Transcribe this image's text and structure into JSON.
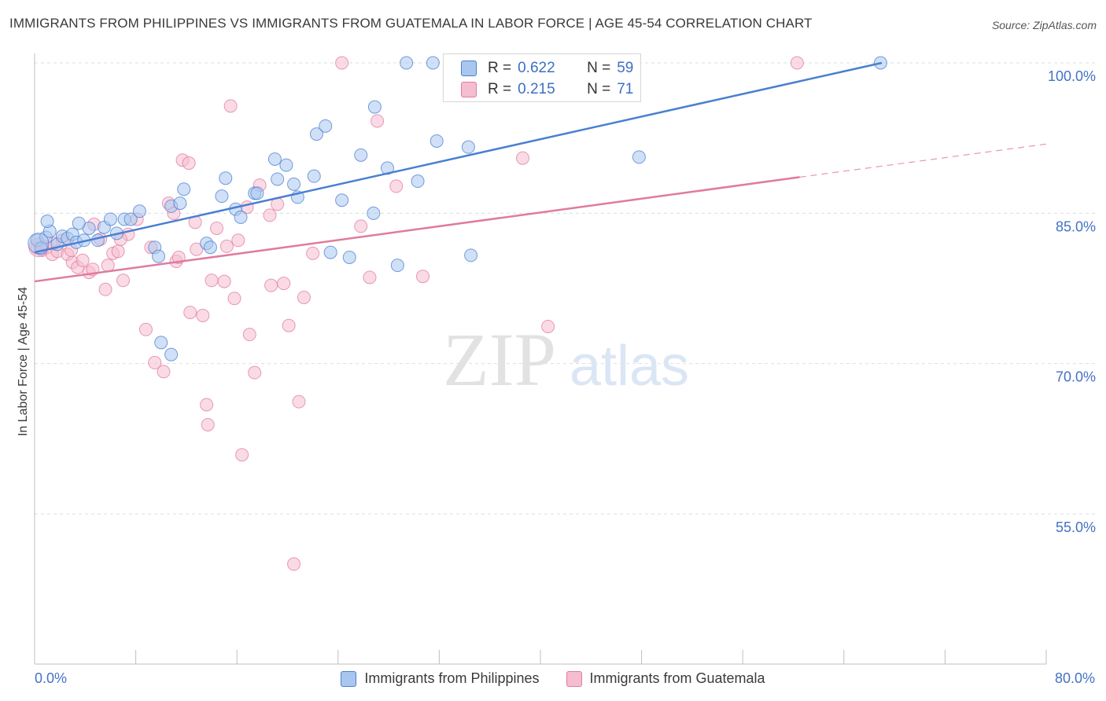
{
  "header": {
    "title": "IMMIGRANTS FROM PHILIPPINES VS IMMIGRANTS FROM GUATEMALA IN LABOR FORCE | AGE 45-54 CORRELATION CHART",
    "source": "Source: ZipAtlas.com"
  },
  "watermark": {
    "zip": "ZIP",
    "atlas": "atlas"
  },
  "stats_box": {
    "row1": {
      "r_label": "R =",
      "r_value": "0.622",
      "n_label": "N =",
      "n_value": "59"
    },
    "row2": {
      "r_label": "R =",
      "r_value": "0.215",
      "n_label": "N =",
      "n_value": "71"
    }
  },
  "colors": {
    "blue": "#4a7fd1",
    "blue_fill": "#a9c6ee",
    "pink": "#e07aa0",
    "pink_fill": "#f5bdd0",
    "axis_text": "#4472c4"
  },
  "chart_data": {
    "type": "scatter",
    "title": "IMMIGRANTS FROM PHILIPPINES VS IMMIGRANTS FROM GUATEMALA IN LABOR FORCE | AGE 45-54 CORRELATION CHART",
    "xlabel": "",
    "ylabel": "In Labor Force | Age 45-54",
    "xlim": [
      0,
      80
    ],
    "ylim": [
      40,
      102
    ],
    "x_tick_labels": [
      "0.0%",
      "80.0%"
    ],
    "y_ticks": [
      55,
      70,
      85,
      100
    ],
    "y_tick_labels": [
      "55.0%",
      "70.0%",
      "85.0%",
      "100.0%"
    ],
    "grid": true,
    "legend_position": "bottom-center",
    "series": [
      {
        "name": "Immigrants from Philippines",
        "color": "#4a7fd1",
        "r": 0.622,
        "n": 59,
        "trend": {
          "x": [
            0,
            67
          ],
          "y": [
            81.1,
            100.0
          ]
        },
        "points": [
          [
            0.2,
            82.3
          ],
          [
            0.5,
            81.5
          ],
          [
            0.9,
            82.6
          ],
          [
            1.2,
            83.2
          ],
          [
            1.8,
            81.9
          ],
          [
            2.2,
            82.7
          ],
          [
            2.6,
            82.5
          ],
          [
            3.0,
            82.9
          ],
          [
            3.3,
            82.1
          ],
          [
            3.9,
            82.3
          ],
          [
            4.3,
            83.5
          ],
          [
            5.0,
            82.3
          ],
          [
            5.5,
            83.6
          ],
          [
            6.0,
            84.4
          ],
          [
            6.5,
            83.0
          ],
          [
            7.1,
            84.4
          ],
          [
            7.6,
            84.4
          ],
          [
            8.3,
            85.2
          ],
          [
            9.5,
            81.6
          ],
          [
            9.8,
            80.7
          ],
          [
            10.8,
            85.7
          ],
          [
            11.5,
            86.0
          ],
          [
            11.8,
            87.4
          ],
          [
            13.6,
            82.0
          ],
          [
            13.9,
            81.6
          ],
          [
            14.8,
            86.7
          ],
          [
            15.1,
            88.5
          ],
          [
            15.9,
            85.4
          ],
          [
            16.3,
            84.6
          ],
          [
            17.4,
            87.0
          ],
          [
            17.6,
            87.0
          ],
          [
            19.0,
            90.4
          ],
          [
            19.2,
            88.4
          ],
          [
            19.9,
            89.8
          ],
          [
            20.5,
            87.9
          ],
          [
            20.8,
            86.6
          ],
          [
            22.1,
            88.7
          ],
          [
            22.3,
            92.9
          ],
          [
            23.0,
            93.7
          ],
          [
            23.4,
            81.1
          ],
          [
            24.3,
            86.3
          ],
          [
            24.9,
            80.6
          ],
          [
            25.8,
            90.8
          ],
          [
            26.8,
            85.0
          ],
          [
            26.9,
            95.6
          ],
          [
            27.9,
            89.5
          ],
          [
            28.7,
            79.8
          ],
          [
            29.4,
            100.0
          ],
          [
            30.3,
            88.2
          ],
          [
            31.5,
            100.0
          ],
          [
            31.8,
            92.2
          ],
          [
            34.3,
            91.6
          ],
          [
            34.5,
            80.8
          ],
          [
            47.8,
            90.6
          ],
          [
            66.9,
            100.0
          ],
          [
            10.0,
            72.1
          ],
          [
            10.8,
            70.9
          ],
          [
            1.0,
            84.2
          ],
          [
            3.5,
            84.0
          ]
        ]
      },
      {
        "name": "Immigrants from Guatemala",
        "color": "#e07aa0",
        "r": 0.215,
        "n": 71,
        "trend": {
          "x": [
            0,
            60.5
          ],
          "y": [
            78.2,
            88.6
          ]
        },
        "trend_dashed": {
          "x": [
            60.5,
            80
          ],
          "y": [
            88.6,
            91.9
          ]
        },
        "points": [
          [
            0.2,
            81.5
          ],
          [
            0.6,
            81.3
          ],
          [
            1.0,
            81.6
          ],
          [
            1.4,
            80.9
          ],
          [
            1.8,
            81.2
          ],
          [
            2.2,
            82.3
          ],
          [
            2.6,
            80.9
          ],
          [
            3.0,
            80.1
          ],
          [
            3.4,
            79.6
          ],
          [
            3.8,
            80.3
          ],
          [
            4.3,
            79.1
          ],
          [
            4.6,
            79.4
          ],
          [
            5.2,
            82.4
          ],
          [
            5.6,
            77.4
          ],
          [
            5.8,
            79.8
          ],
          [
            6.2,
            81.0
          ],
          [
            6.6,
            81.2
          ],
          [
            7.0,
            78.3
          ],
          [
            7.4,
            82.9
          ],
          [
            8.1,
            84.4
          ],
          [
            8.8,
            73.4
          ],
          [
            9.5,
            70.1
          ],
          [
            10.2,
            69.2
          ],
          [
            10.6,
            86.0
          ],
          [
            11.0,
            85.0
          ],
          [
            11.2,
            80.2
          ],
          [
            11.4,
            80.6
          ],
          [
            11.7,
            90.3
          ],
          [
            12.2,
            90.0
          ],
          [
            12.3,
            75.1
          ],
          [
            12.8,
            81.4
          ],
          [
            13.3,
            74.8
          ],
          [
            13.6,
            65.9
          ],
          [
            13.7,
            63.9
          ],
          [
            14.0,
            78.3
          ],
          [
            14.4,
            83.5
          ],
          [
            15.2,
            81.7
          ],
          [
            15.5,
            95.7
          ],
          [
            15.8,
            76.5
          ],
          [
            16.1,
            82.3
          ],
          [
            16.4,
            60.9
          ],
          [
            16.8,
            85.6
          ],
          [
            17.0,
            72.9
          ],
          [
            17.4,
            69.1
          ],
          [
            17.8,
            87.8
          ],
          [
            18.6,
            84.8
          ],
          [
            18.7,
            77.8
          ],
          [
            19.2,
            85.9
          ],
          [
            19.7,
            78.0
          ],
          [
            20.1,
            73.8
          ],
          [
            20.5,
            50.0
          ],
          [
            20.9,
            66.2
          ],
          [
            21.3,
            76.6
          ],
          [
            24.3,
            100.0
          ],
          [
            25.8,
            83.7
          ],
          [
            26.5,
            78.6
          ],
          [
            27.1,
            94.2
          ],
          [
            28.6,
            87.7
          ],
          [
            30.7,
            78.7
          ],
          [
            37.2,
            100.0
          ],
          [
            38.6,
            90.5
          ],
          [
            40.6,
            73.7
          ],
          [
            60.3,
            100.0
          ],
          [
            1.5,
            82.0
          ],
          [
            2.9,
            81.3
          ],
          [
            4.7,
            83.9
          ],
          [
            6.8,
            82.4
          ],
          [
            9.2,
            81.6
          ],
          [
            12.7,
            84.1
          ],
          [
            15.0,
            78.2
          ],
          [
            22.0,
            81.0
          ]
        ]
      }
    ]
  }
}
